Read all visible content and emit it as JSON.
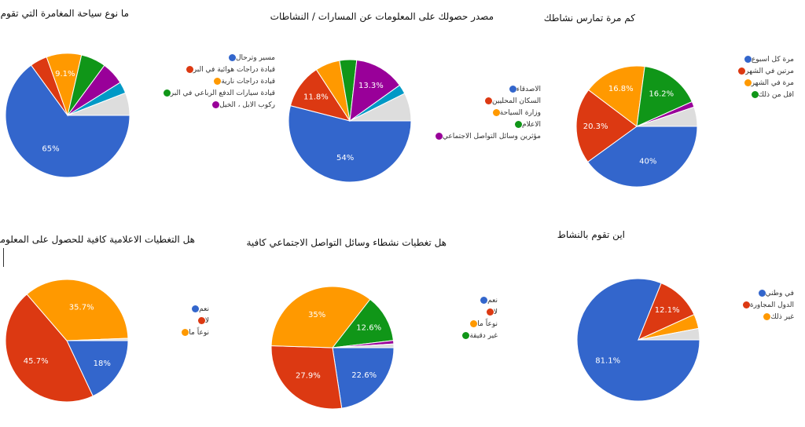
{
  "chart_data": [
    {
      "type": "pie",
      "title": "ما نوع سياحة المغامرة التي تقوم بها",
      "slices": [
        {
          "label": "مسير وترحال",
          "value": 65,
          "display": "65%",
          "color": "#3366cc"
        },
        {
          "label": "قيادة دراجات هوائية في البر",
          "value": 4.5,
          "display": "",
          "color": "#dc3912"
        },
        {
          "label": "قيادة دراجات نارية",
          "value": 9.1,
          "display": "9.1%",
          "color": "#ff9900"
        },
        {
          "label": "قيادة سيارات الدفع الرباعي في البر",
          "value": 6.5,
          "display": "",
          "color": "#109618"
        },
        {
          "label": "ركوب الابل ، الخيل",
          "value": 6,
          "display": "",
          "color": "#990099"
        },
        {
          "label": "",
          "value": 3,
          "display": "",
          "color": "#0099c6"
        },
        {
          "label": "",
          "value": 5.9,
          "display": "",
          "color": "#dddddd"
        }
      ]
    },
    {
      "type": "pie",
      "title": "مصدر حصولك على المعلومات عن المسارات / النشاطات",
      "slices": [
        {
          "label": "الاصدقاء",
          "value": 54,
          "display": "54%",
          "color": "#3366cc"
        },
        {
          "label": "السكان المحليين",
          "value": 11.8,
          "display": "11.8%",
          "color": "#dc3912"
        },
        {
          "label": "وزارة السياحة",
          "value": 6.5,
          "display": "",
          "color": "#ff9900"
        },
        {
          "label": "الاعلام",
          "value": 4.5,
          "display": "",
          "color": "#109618"
        },
        {
          "label": "مؤثرين وسائل التواصل الاجتماعي",
          "value": 13.3,
          "display": "13.3%",
          "color": "#990099"
        },
        {
          "label": "",
          "value": 2.5,
          "display": "",
          "color": "#0099c6"
        },
        {
          "label": "",
          "value": 7.4,
          "display": "",
          "color": "#dddddd"
        }
      ]
    },
    {
      "type": "pie",
      "title": "كم مرة تمارس نشاطك",
      "slices": [
        {
          "label": "مرة كل اسبوع",
          "value": 40,
          "display": "40%",
          "color": "#3366cc"
        },
        {
          "label": "مرتين في الشهر",
          "value": 20.3,
          "display": "20.3%",
          "color": "#dc3912"
        },
        {
          "label": "مرة في الشهر",
          "value": 16.8,
          "display": "16.8%",
          "color": "#ff9900"
        },
        {
          "label": "اقل من ذلك",
          "value": 16.2,
          "display": "16.2%",
          "color": "#109618"
        },
        {
          "label": "",
          "value": 1.5,
          "display": "",
          "color": "#990099"
        },
        {
          "label": "",
          "value": 5.2,
          "display": "",
          "color": "#dddddd"
        }
      ]
    },
    {
      "type": "pie",
      "title": "هل التغطيات الاعلامية كافية للحصول على المعلومة",
      "slices": [
        {
          "label": "نعم",
          "value": 18,
          "display": "18%",
          "color": "#3366cc"
        },
        {
          "label": "لا",
          "value": 45.7,
          "display": "45.7%",
          "color": "#dc3912"
        },
        {
          "label": "نوعاً ما",
          "value": 35.7,
          "display": "35.7%",
          "color": "#ff9900"
        },
        {
          "label": "",
          "value": 0.6,
          "display": "",
          "color": "#dddddd"
        }
      ]
    },
    {
      "type": "pie",
      "title": "هل تغطيات نشطاء وسائل التواصل الاجتماعي كافية",
      "slices": [
        {
          "label": "نعم",
          "value": 22.6,
          "display": "22.6%",
          "color": "#3366cc"
        },
        {
          "label": "لا",
          "value": 27.9,
          "display": "27.9%",
          "color": "#dc3912"
        },
        {
          "label": "نوعاً ما",
          "value": 35,
          "display": "35%",
          "color": "#ff9900"
        },
        {
          "label": "غير دقيقة",
          "value": 12.6,
          "display": "12.6%",
          "color": "#109618"
        },
        {
          "label": "",
          "value": 0.9,
          "display": "",
          "color": "#990099"
        },
        {
          "label": "",
          "value": 1,
          "display": "",
          "color": "#dddddd"
        }
      ]
    },
    {
      "type": "pie",
      "title": "اين تقوم بالنشاط",
      "slices": [
        {
          "label": "في وطني",
          "value": 81.1,
          "display": "81.1%",
          "color": "#3366cc"
        },
        {
          "label": "الدول المجاورة",
          "value": 12.1,
          "display": "12.1%",
          "color": "#dc3912"
        },
        {
          "label": "غير ذلك",
          "value": 3.8,
          "display": "",
          "color": "#ff9900"
        },
        {
          "label": "",
          "value": 3,
          "display": "",
          "color": "#dddddd"
        }
      ]
    }
  ]
}
